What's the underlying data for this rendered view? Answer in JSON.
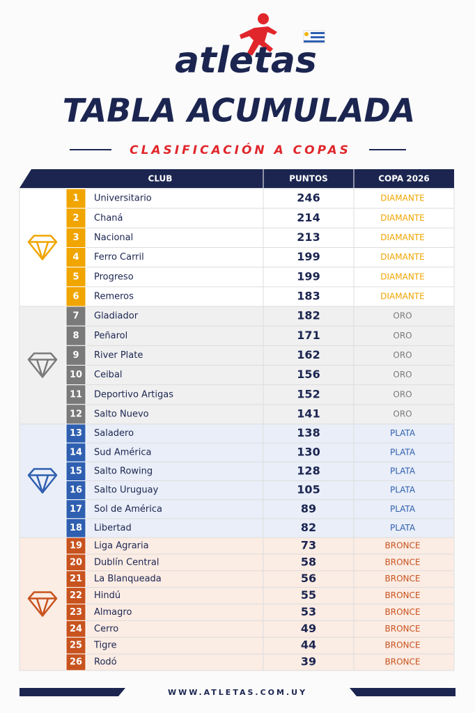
{
  "logo": {
    "text": "atletas"
  },
  "header": {
    "title": "TABLA ACUMULADA",
    "subtitle": "CLASIFICACIÓN A COPAS"
  },
  "table": {
    "columns": [
      "CLUB",
      "PUNTOS",
      "COPA 2026"
    ],
    "groups": [
      {
        "color": "#f0a500",
        "background": "#ffffff",
        "rows": [
          [
            1,
            "Universitario",
            246,
            "DIAMANTE"
          ],
          [
            2,
            "Chaná",
            214,
            "DIAMANTE"
          ],
          [
            3,
            "Nacional",
            213,
            "DIAMANTE"
          ],
          [
            4,
            "Ferro Carril",
            199,
            "DIAMANTE"
          ],
          [
            5,
            "Progreso",
            199,
            "DIAMANTE"
          ],
          [
            6,
            "Remeros",
            183,
            "DIAMANTE"
          ]
        ]
      },
      {
        "color": "#7a7a7a",
        "background": "#f0f0f0",
        "rows": [
          [
            7,
            "Gladiador",
            182,
            "ORO"
          ],
          [
            8,
            "Peñarol",
            171,
            "ORO"
          ],
          [
            9,
            "River Plate",
            162,
            "ORO"
          ],
          [
            10,
            "Ceibal",
            156,
            "ORO"
          ],
          [
            11,
            "Deportivo Artigas",
            152,
            "ORO"
          ],
          [
            12,
            "Salto Nuevo",
            141,
            "ORO"
          ]
        ]
      },
      {
        "color": "#2f5fb0",
        "background": "#e9eef8",
        "rows": [
          [
            13,
            "Saladero",
            138,
            "PLATA"
          ],
          [
            14,
            "Sud América",
            130,
            "PLATA"
          ],
          [
            15,
            "Salto Rowing",
            128,
            "PLATA"
          ],
          [
            16,
            "Salto Uruguay",
            105,
            "PLATA"
          ],
          [
            17,
            "Sol de América",
            89,
            "PLATA"
          ],
          [
            18,
            "Libertad",
            82,
            "PLATA"
          ]
        ]
      },
      {
        "color": "#c8531e",
        "background": "#fbece4",
        "rows": [
          [
            19,
            "Liga Agraria",
            73,
            "BRONCE"
          ],
          [
            20,
            "Dublín Central",
            58,
            "BRONCE"
          ],
          [
            21,
            "La Blanqueada",
            56,
            "BRONCE"
          ],
          [
            22,
            "Hindú",
            55,
            "BRONCE"
          ],
          [
            23,
            "Almagro",
            53,
            "BRONCE"
          ],
          [
            24,
            "Cerro",
            49,
            "BRONCE"
          ],
          [
            25,
            "Tigre",
            44,
            "BRONCE"
          ],
          [
            26,
            "Rodó",
            39,
            "BRONCE"
          ]
        ]
      }
    ]
  },
  "footer": {
    "url": "WWW.ATLETAS.COM.UY"
  }
}
